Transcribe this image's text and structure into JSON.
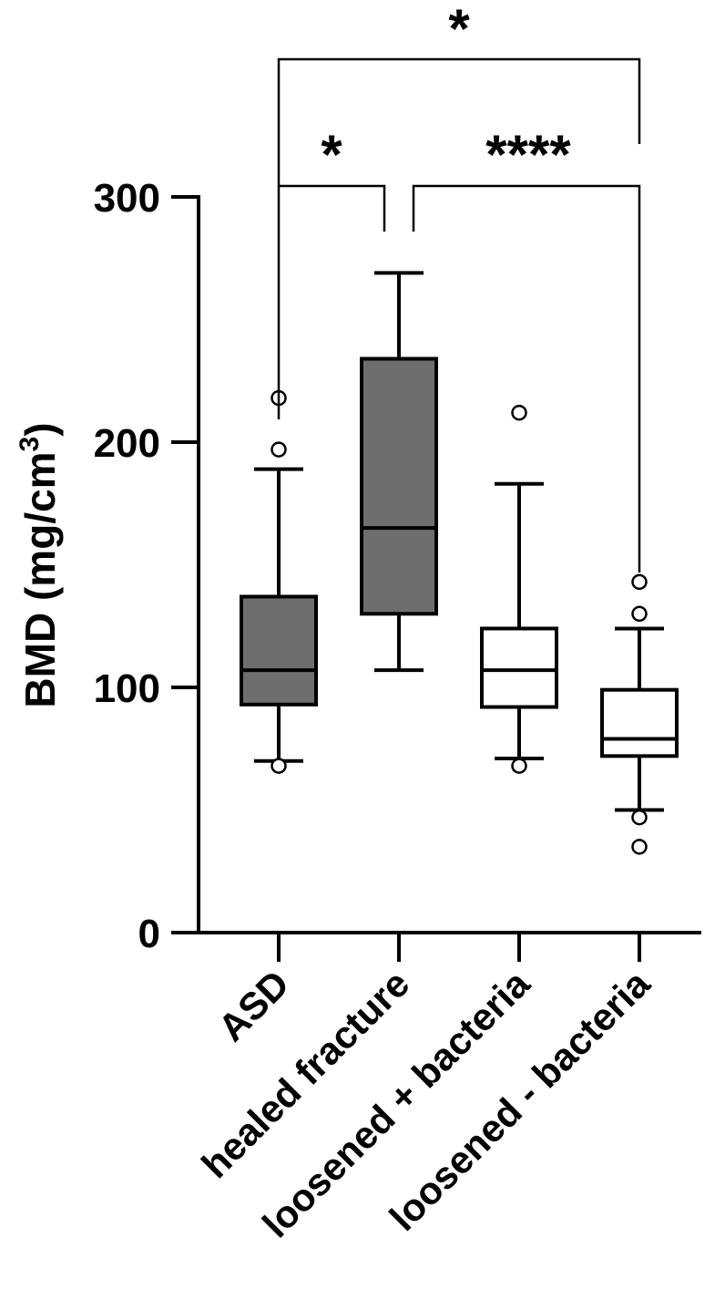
{
  "chart_data": {
    "type": "box",
    "title": "",
    "xlabel": "",
    "ylabel": "BMD  (mg/cm",
    "ylabel_superscript": "3",
    "ylabel_close": ")",
    "ylim": [
      0,
      300
    ],
    "yticks": [
      0,
      100,
      200,
      300
    ],
    "categories": [
      "ASD",
      "healed fracture",
      "loosened + bacteria",
      "loosened - bacteria"
    ],
    "boxes": [
      {
        "name": "ASD",
        "fill": "#6e6e6e",
        "whisker_low": 70,
        "q1": 93,
        "median": 107,
        "q3": 137,
        "whisker_high": 189,
        "outliers": [
          68,
          197,
          218
        ]
      },
      {
        "name": "healed fracture",
        "fill": "#6e6e6e",
        "whisker_low": 107,
        "q1": 130,
        "median": 165,
        "q3": 234,
        "whisker_high": 269,
        "outliers": []
      },
      {
        "name": "loosened + bacteria",
        "fill": "#ffffff",
        "whisker_low": 71,
        "q1": 92,
        "median": 107,
        "q3": 124,
        "whisker_high": 183,
        "outliers": [
          68,
          212
        ]
      },
      {
        "name": "loosened - bacteria",
        "fill": "#ffffff",
        "whisker_low": 50,
        "q1": 72,
        "median": 79,
        "q3": 99,
        "whisker_high": 124,
        "outliers": [
          35,
          47,
          130,
          143
        ]
      }
    ],
    "significance": [
      {
        "from": "ASD",
        "to": "healed fracture",
        "label": "*"
      },
      {
        "from": "healed fracture",
        "to": "loosened - bacteria",
        "label": "****"
      },
      {
        "from": "ASD",
        "to": "loosened - bacteria",
        "label": "*"
      }
    ]
  }
}
